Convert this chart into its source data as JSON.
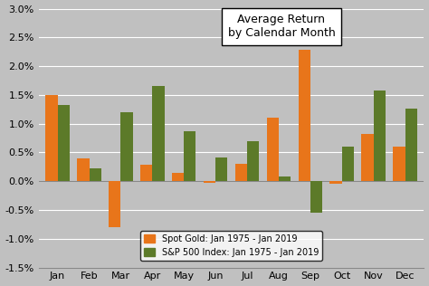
{
  "months": [
    "Jan",
    "Feb",
    "Mar",
    "Apr",
    "May",
    "Jun",
    "Jul",
    "Aug",
    "Sep",
    "Oct",
    "Nov",
    "Dec"
  ],
  "gold": [
    1.5,
    0.4,
    -0.8,
    0.28,
    0.15,
    -0.02,
    0.3,
    1.1,
    2.28,
    -0.05,
    0.82,
    0.6
  ],
  "sp500": [
    1.33,
    0.22,
    1.2,
    1.65,
    0.87,
    0.42,
    0.7,
    0.09,
    -0.55,
    0.6,
    1.58,
    1.27
  ],
  "gold_color": "#E8751A",
  "sp500_color": "#5C7A29",
  "background_color": "#C0C0C0",
  "grid_color": "#FFFFFF",
  "title_box_text": "Average Return\nby Calendar Month",
  "legend_gold": "Spot Gold: Jan 1975 - Jan 2019",
  "legend_sp500": "S&P 500 Index: Jan 1975 - Jan 2019",
  "ylim": [
    -1.5,
    3.0
  ],
  "yticks": [
    -1.5,
    -1.0,
    -0.5,
    0.0,
    0.5,
    1.0,
    1.5,
    2.0,
    2.5,
    3.0
  ]
}
